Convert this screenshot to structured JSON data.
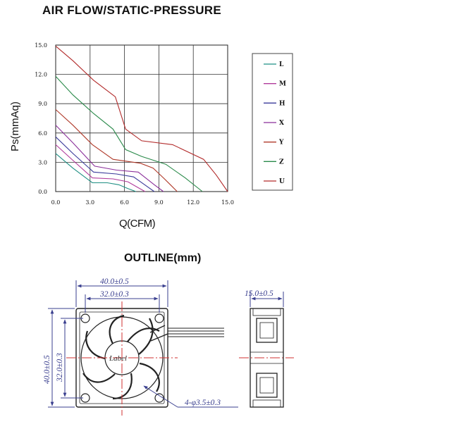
{
  "titles": {
    "chart": "AIR FLOW/STATIC-PRESSURE",
    "outline": "OUTLINE(mm)"
  },
  "chart_data": {
    "type": "line",
    "title": "AIR FLOW/STATIC-PRESSURE",
    "xlabel": "Q(CFM)",
    "ylabel": "Ps(mmAq)",
    "xlim": [
      0,
      15
    ],
    "ylim": [
      0,
      15
    ],
    "x_ticks": [
      "0.0",
      "3.0",
      "6.0",
      "9.0",
      "12.0",
      "15.0"
    ],
    "y_ticks": [
      "0.0",
      "3.0",
      "6.0",
      "9.0",
      "12.0",
      "15.0"
    ],
    "grid": true,
    "legend_position": "right",
    "series": [
      {
        "name": "L",
        "color": "#1f8f84",
        "points": [
          [
            0,
            3.9
          ],
          [
            1.5,
            2.4
          ],
          [
            3.2,
            0.9
          ],
          [
            4.5,
            0.9
          ],
          [
            5.5,
            0.7
          ],
          [
            6.3,
            0.3
          ],
          [
            7.0,
            0
          ]
        ]
      },
      {
        "name": "M",
        "color": "#b03a9b",
        "points": [
          [
            0,
            4.8
          ],
          [
            1.5,
            3.2
          ],
          [
            3.2,
            1.4
          ],
          [
            5.0,
            1.3
          ],
          [
            6.3,
            1.0
          ],
          [
            7.2,
            0.4
          ],
          [
            7.8,
            0
          ]
        ]
      },
      {
        "name": "H",
        "color": "#3a3a9a",
        "points": [
          [
            0,
            5.6
          ],
          [
            1.5,
            3.9
          ],
          [
            3.3,
            2.0
          ],
          [
            5.3,
            1.8
          ],
          [
            6.8,
            1.5
          ],
          [
            8.0,
            0.5
          ],
          [
            8.6,
            0
          ]
        ]
      },
      {
        "name": "X",
        "color": "#8a2f9a",
        "points": [
          [
            0,
            6.8
          ],
          [
            1.5,
            5.0
          ],
          [
            3.4,
            2.6
          ],
          [
            5.3,
            2.2
          ],
          [
            7.2,
            2.0
          ],
          [
            8.6,
            0.7
          ],
          [
            9.4,
            0
          ]
        ]
      },
      {
        "name": "Y",
        "color": "#b03a2a",
        "points": [
          [
            0,
            8.4
          ],
          [
            1.5,
            6.8
          ],
          [
            3.2,
            4.8
          ],
          [
            5.0,
            3.3
          ],
          [
            7.4,
            2.9
          ],
          [
            8.5,
            2.4
          ],
          [
            9.4,
            1.4
          ],
          [
            10.0,
            0.7
          ],
          [
            10.6,
            0
          ]
        ]
      },
      {
        "name": "Z",
        "color": "#2a8a4a",
        "points": [
          [
            0,
            11.8
          ],
          [
            1.5,
            9.9
          ],
          [
            3.3,
            8.0
          ],
          [
            5.0,
            6.4
          ],
          [
            6.1,
            4.3
          ],
          [
            7.5,
            3.6
          ],
          [
            9.6,
            2.8
          ],
          [
            11.3,
            1.4
          ],
          [
            12.8,
            0
          ]
        ]
      },
      {
        "name": "U",
        "color": "#b22a2a",
        "points": [
          [
            0,
            14.9
          ],
          [
            1.5,
            13.4
          ],
          [
            3.3,
            11.4
          ],
          [
            5.2,
            9.7
          ],
          [
            6.1,
            6.4
          ],
          [
            7.5,
            5.2
          ],
          [
            10.2,
            4.8
          ],
          [
            12.9,
            3.3
          ],
          [
            14.0,
            1.7
          ],
          [
            15.0,
            0
          ]
        ]
      }
    ]
  },
  "outline": {
    "width_outer": "40.0±0.5",
    "width_inner": "32.0±0.3",
    "height_outer": "40.0±0.5",
    "height_inner": "32.0±0.3",
    "depth": "15.0±0.5",
    "holes": "4-φ3.5±0.3",
    "hub_label": "Label",
    "dim_color": "#3a3f8f",
    "centerline_color": "#d03030"
  }
}
